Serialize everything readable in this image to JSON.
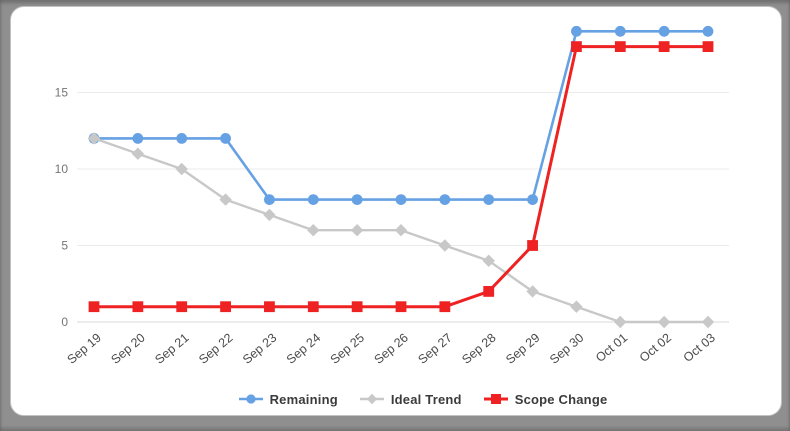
{
  "frame": {
    "background_color": "#8f8f8f",
    "card_background_color": "#ffffff"
  },
  "chart_data": {
    "type": "line",
    "title": "",
    "xlabel": "",
    "ylabel": "",
    "x": [
      "Sep 19",
      "Sep 20",
      "Sep 21",
      "Sep 22",
      "Sep 23",
      "Sep 24",
      "Sep 25",
      "Sep 26",
      "Sep 27",
      "Sep 28",
      "Sep 29",
      "Sep 30",
      "Oct 01",
      "Oct 02",
      "Oct 03"
    ],
    "series": [
      {
        "name": "Remaining",
        "color": "#66a1e4",
        "marker": "circle",
        "values": [
          12,
          12,
          12,
          12,
          8,
          8,
          8,
          8,
          8,
          8,
          8,
          19,
          19,
          19,
          19
        ]
      },
      {
        "name": "Ideal Trend",
        "color": "#c8c8c8",
        "marker": "diamond",
        "values": [
          12,
          11,
          10,
          8,
          7,
          6,
          6,
          6,
          5,
          4,
          2,
          1,
          0,
          0,
          0
        ]
      },
      {
        "name": "Scope Change",
        "color": "#ee2222",
        "marker": "square",
        "values": [
          1,
          1,
          1,
          1,
          1,
          1,
          1,
          1,
          1,
          2,
          5,
          18,
          18,
          18,
          18
        ]
      }
    ],
    "yticks": [
      0,
      5,
      10,
      15
    ],
    "ylim": [
      0,
      19.8
    ],
    "grid": true,
    "legend_position": "bottom",
    "style": {
      "grid_color": "#ebebeb",
      "baseline_color": "#d9d9df",
      "y_tick_label_color": "#757575",
      "x_tick_label_color": "#4a4a4a",
      "legend_text_color": "#3b3b3b"
    }
  }
}
